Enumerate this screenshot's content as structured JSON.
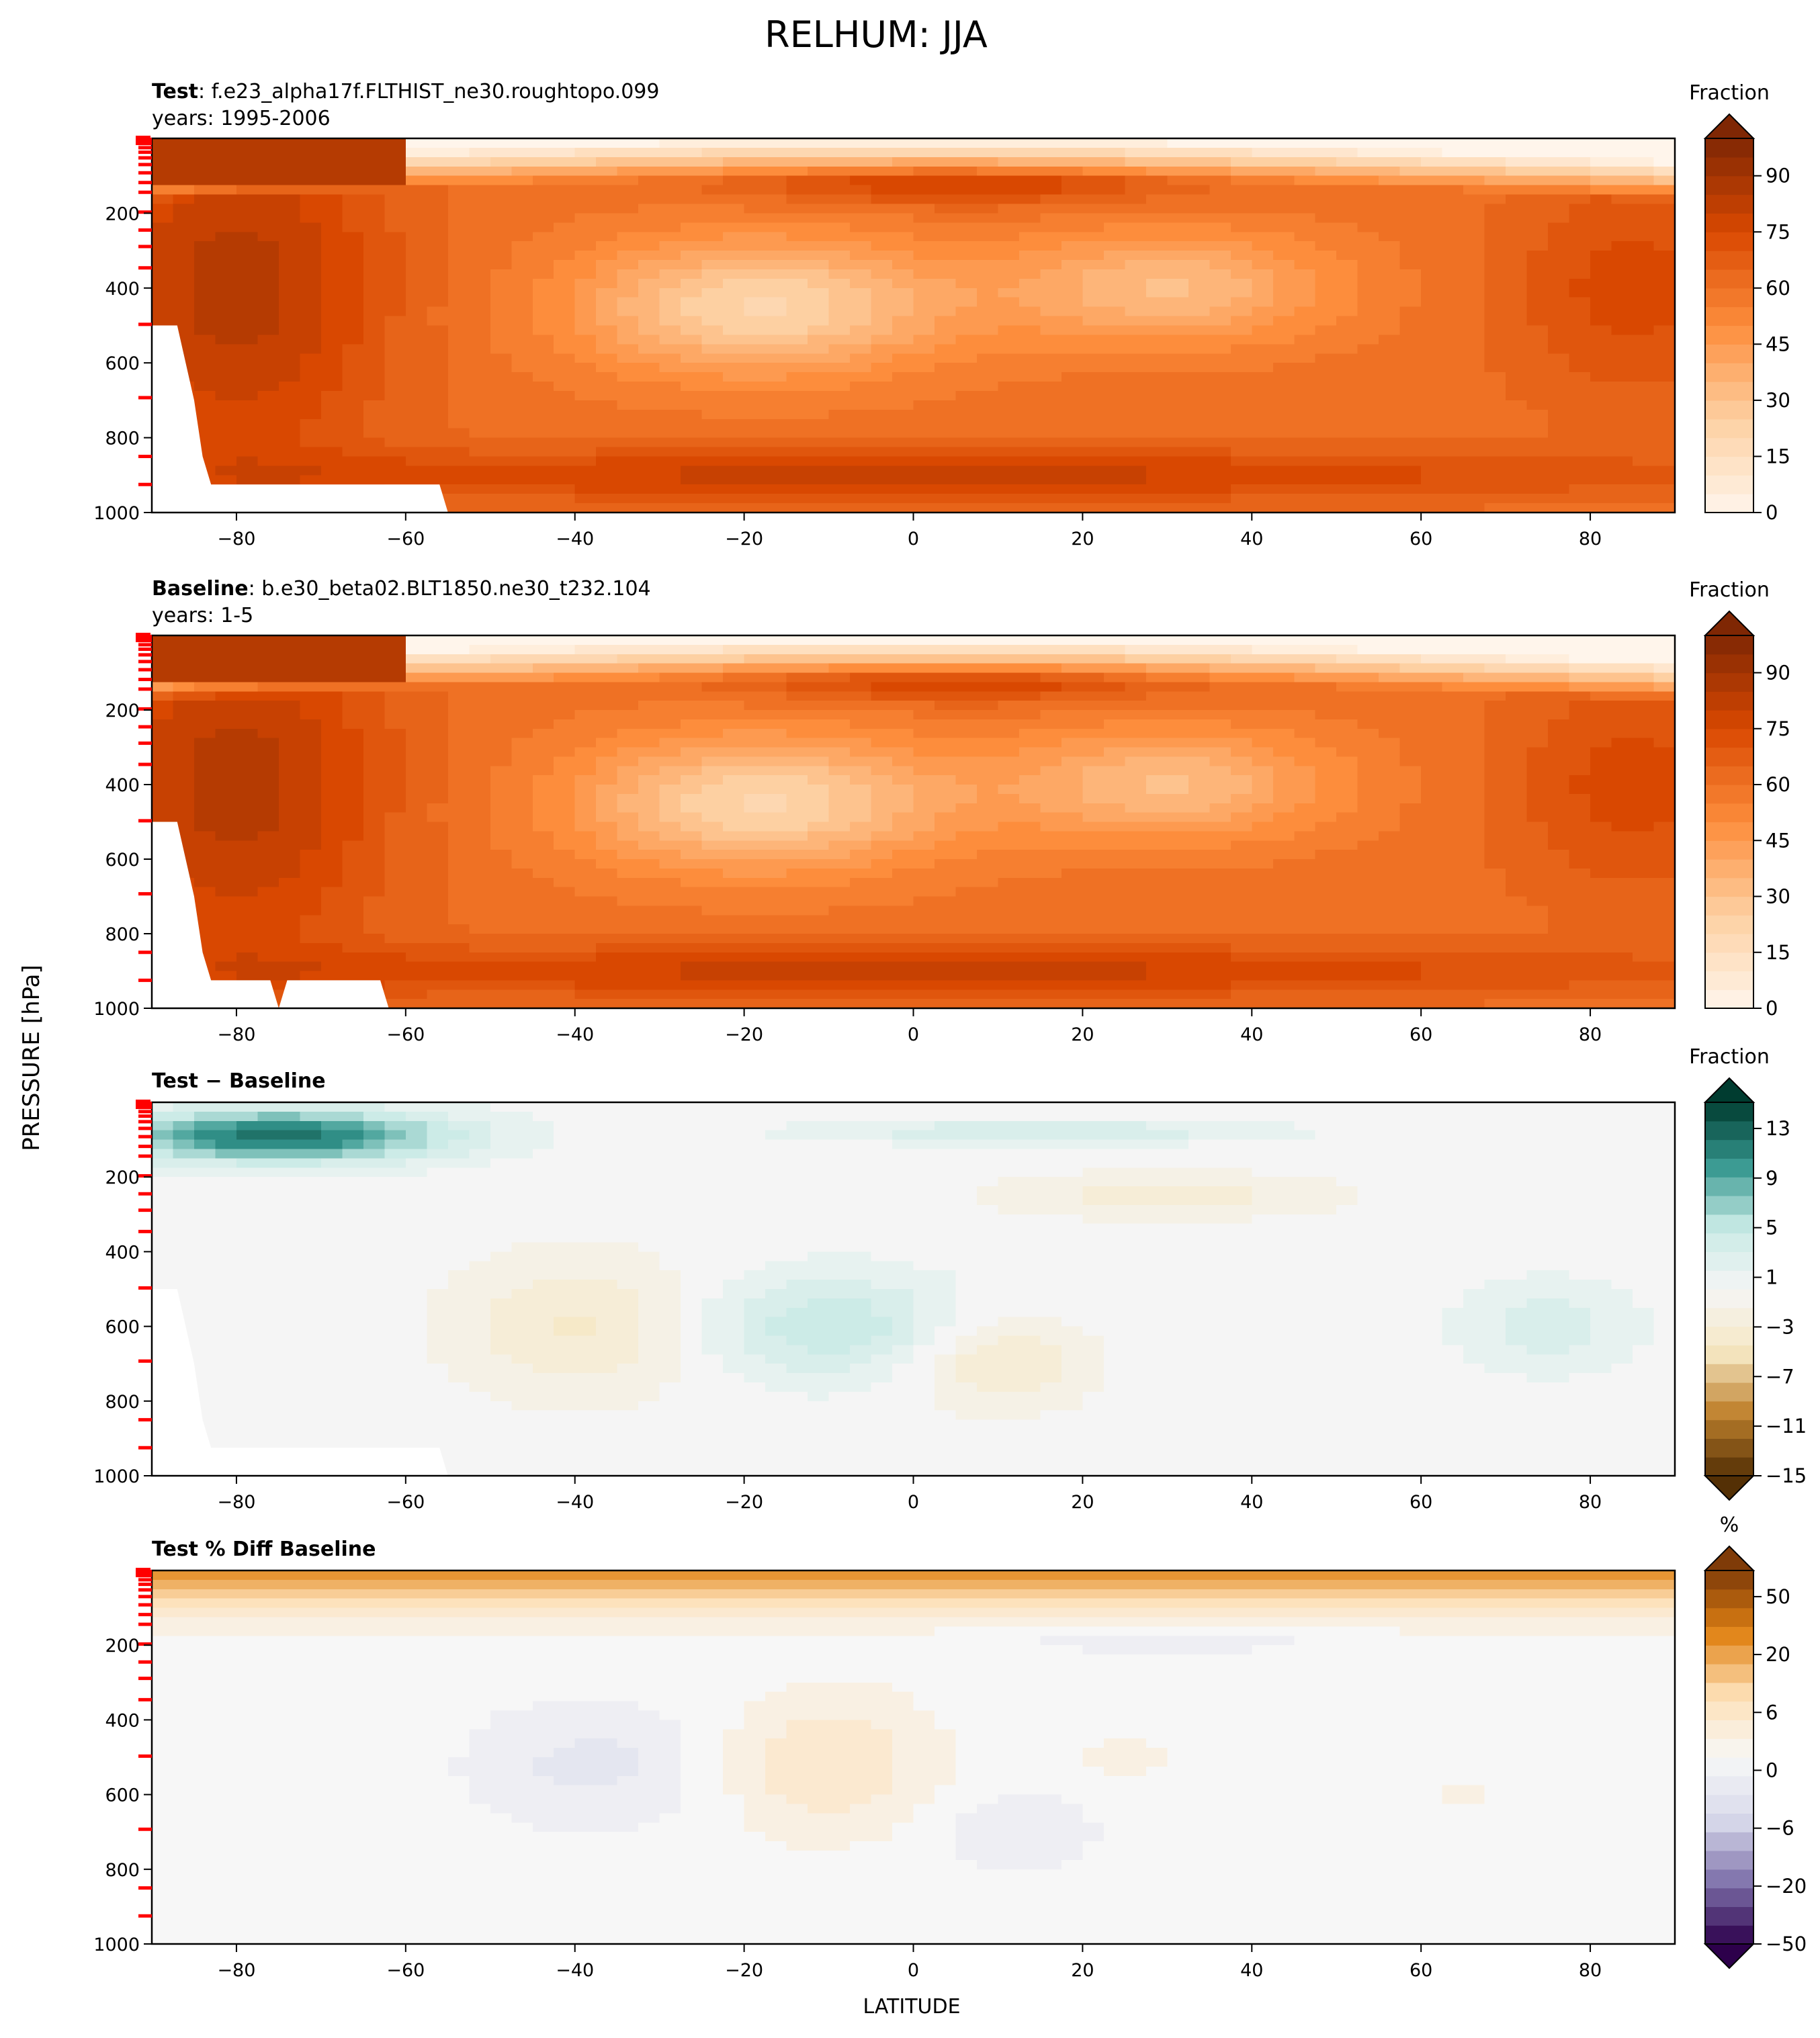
{
  "figure_title": "RELHUM: JJA",
  "ylabel_shared": "PRESSURE [hPa]",
  "xlabel_shared": "LATITUDE",
  "colors": {
    "oranges_low": "#fff5eb",
    "oranges_high": "#7f2704",
    "brbg_low": "#543005",
    "brbg_mid": "#f5f5f5",
    "brbg_high": "#003c30",
    "puor_low": "#2d004b",
    "puor_mid": "#f7f7f7",
    "puor_high": "#7f3b08",
    "level_tick": "#ff0000"
  },
  "chart_data": [
    {
      "type": "heatmap",
      "panel": "test",
      "title_bold": "Test",
      "title_rest": ": f.e23_alpha17f.FLTHIST_ne30.roughtopo.099",
      "subtitle": "years: 1995-2006",
      "colorbar_label": "Fraction",
      "colorbar_ticks": [
        "0",
        "15",
        "30",
        "45",
        "60",
        "75",
        "90"
      ],
      "colorbar_range": [
        0,
        100
      ],
      "cmap": "oranges",
      "xlim": [
        -90,
        90
      ],
      "ylim": [
        1000,
        0
      ],
      "xticks": [
        "−80",
        "−60",
        "−40",
        "−20",
        "0",
        "20",
        "40",
        "60",
        "80"
      ],
      "yticks": [
        "200",
        "400",
        "600",
        "800",
        "1000"
      ],
      "topo": "test"
    },
    {
      "type": "heatmap",
      "panel": "baseline",
      "title_bold": "Baseline",
      "title_rest": ": b.e30_beta02.BLT1850.ne30_t232.104",
      "subtitle": "years: 1-5",
      "colorbar_label": "Fraction",
      "colorbar_ticks": [
        "0",
        "15",
        "30",
        "45",
        "60",
        "75",
        "90"
      ],
      "colorbar_range": [
        0,
        100
      ],
      "cmap": "oranges",
      "xlim": [
        -90,
        90
      ],
      "ylim": [
        1000,
        0
      ],
      "xticks": [
        "−80",
        "−60",
        "−40",
        "−20",
        "0",
        "20",
        "40",
        "60",
        "80"
      ],
      "yticks": [
        "200",
        "400",
        "600",
        "800",
        "1000"
      ],
      "topo": "baseline"
    },
    {
      "type": "heatmap",
      "panel": "diff",
      "title_bold": "Test − Baseline",
      "title_rest": "",
      "subtitle": "",
      "colorbar_label": "Fraction",
      "colorbar_ticks": [
        "−15",
        "−11",
        "−7",
        "−3",
        "1",
        "5",
        "9",
        "13"
      ],
      "colorbar_range": [
        -15,
        15
      ],
      "cmap": "brbg",
      "xlim": [
        -90,
        90
      ],
      "ylim": [
        1000,
        0
      ],
      "xticks": [
        "−80",
        "−60",
        "−40",
        "−20",
        "0",
        "20",
        "40",
        "60",
        "80"
      ],
      "yticks": [
        "200",
        "400",
        "600",
        "800",
        "1000"
      ],
      "topo": "test"
    },
    {
      "type": "heatmap",
      "panel": "pctdiff",
      "title_bold": "Test % Diff Baseline",
      "title_rest": "",
      "subtitle": "",
      "colorbar_label": "%",
      "colorbar_ticks": [
        "−50",
        "−20",
        "−6",
        "0",
        "6",
        "20",
        "50"
      ],
      "colorbar_range": [
        -100,
        100
      ],
      "cmap": "puor",
      "xlim": [
        -90,
        90
      ],
      "ylim": [
        1000,
        0
      ],
      "xticks": [
        "−80",
        "−60",
        "−40",
        "−20",
        "0",
        "20",
        "40",
        "60",
        "80"
      ],
      "yticks": [
        "200",
        "400",
        "600",
        "800",
        "1000"
      ],
      "topo": "none"
    }
  ],
  "model_level_ticks_hpa": [
    3,
    7,
    14,
    25,
    37,
    52,
    70,
    92,
    118,
    144,
    197,
    245,
    289,
    346,
    497,
    693,
    850,
    925
  ]
}
